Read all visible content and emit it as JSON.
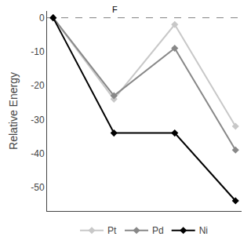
{
  "chart_data": {
    "type": "line",
    "y_label": "Relative Energy",
    "x": [
      0,
      1,
      2,
      3
    ],
    "series": [
      {
        "name": "Pt",
        "color": "#c8c8c8",
        "values": [
          0,
          -24,
          -2,
          -32
        ],
        "marker": "diamond",
        "line_style": "solid"
      },
      {
        "name": "Pd",
        "color": "#888888",
        "values": [
          0,
          -23,
          -9,
          -39
        ],
        "marker": "diamond",
        "line_style": "solid"
      },
      {
        "name": "Ni",
        "color": "#000000",
        "values": [
          0,
          -34,
          -34,
          -54
        ],
        "marker": "diamond",
        "line_style": "solid"
      }
    ],
    "xlim": [
      -0.1,
      3.1
    ],
    "xticks": [],
    "ylim": [
      -57,
      2
    ],
    "yticks": [
      0,
      -10,
      -20,
      -30,
      -40,
      -50
    ],
    "hline": 0,
    "annotations": [
      {
        "text": "F",
        "x": 1,
        "y": 0
      }
    ],
    "tick_labels": "y",
    "grid": false,
    "legend": "bottom"
  }
}
